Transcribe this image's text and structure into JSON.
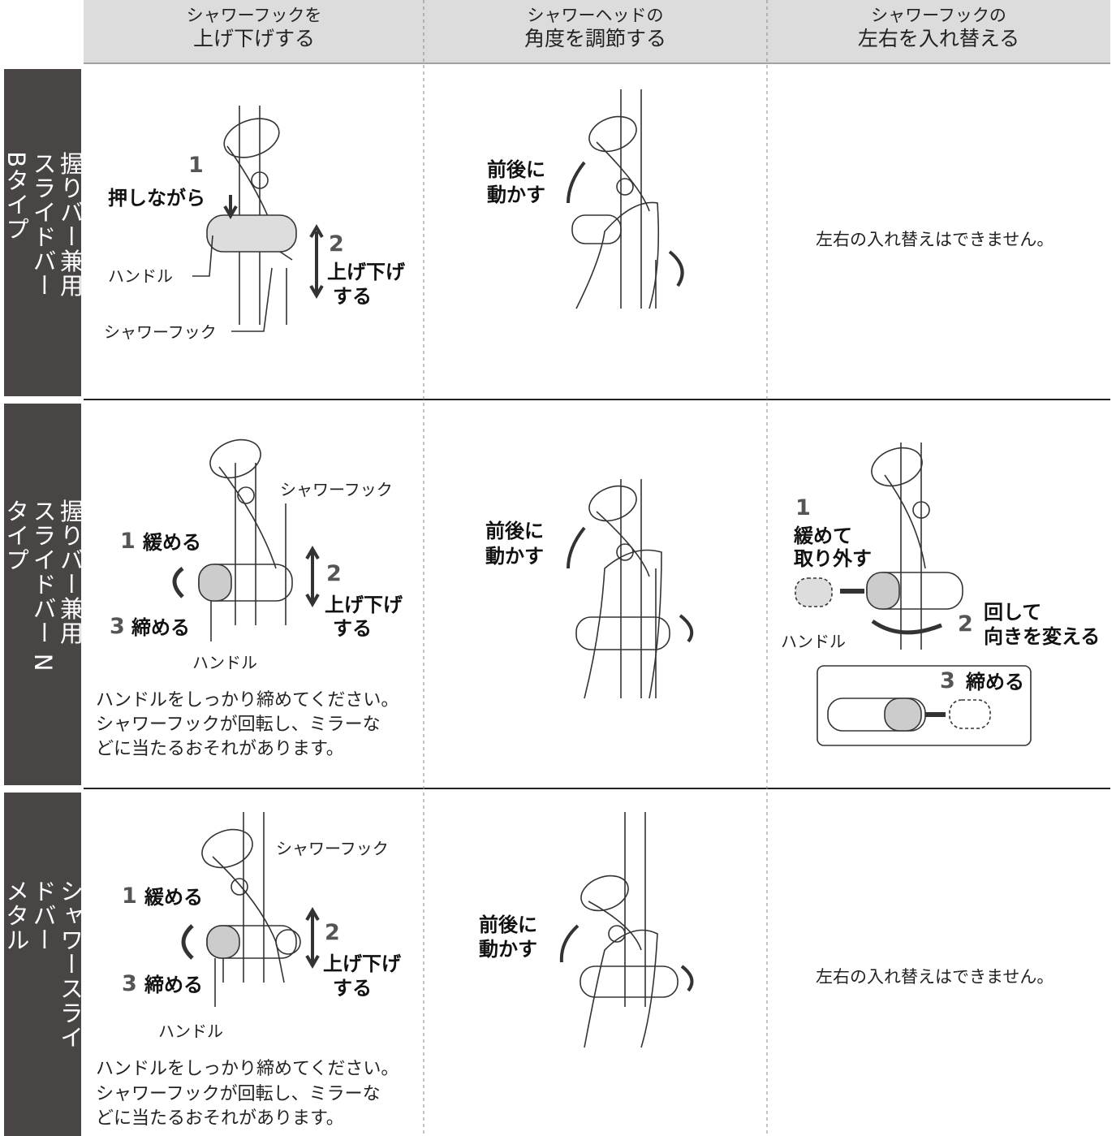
{
  "header": {
    "columns": [
      [
        "シャワーフックを",
        "上げ下げする"
      ],
      [
        "シャワーヘッドの",
        "角度を調節する"
      ],
      [
        "シャワーフックの",
        "左右を入れ替える"
      ]
    ]
  },
  "rows": [
    {
      "label": [
        "握りバー兼用",
        "スライドバー Bタイプ"
      ],
      "cells": [
        {
          "texts": [
            "1",
            "押しながら",
            "2",
            "上げ下げ",
            "する",
            "ハンドル",
            "シャワーフック"
          ]
        },
        {
          "texts": [
            "前後に",
            "動かす"
          ]
        },
        {
          "texts": [
            "左右の入れ替えはできません。"
          ]
        }
      ]
    },
    {
      "label": [
        "握りバー兼用",
        "スライドバー Nタイプ"
      ],
      "cells": [
        {
          "texts": [
            "シャワーフック",
            "1",
            "緩める",
            "2",
            "上げ下げ",
            "する",
            "3",
            "締める",
            "ハンドル"
          ],
          "note": [
            "ハンドルをしっかり締めてください。",
            "シャワーフックが回転し、ミラーな",
            "どに当たるおそれがあります。"
          ]
        },
        {
          "texts": [
            "前後に",
            "動かす"
          ]
        },
        {
          "texts": [
            "1",
            "緩めて",
            "取り外す",
            "2",
            "回して",
            "向きを変える",
            "3",
            "締める",
            "ハンドル"
          ]
        }
      ]
    },
    {
      "label": [
        "シャワースライドバー",
        "メタル"
      ],
      "cells": [
        {
          "texts": [
            "シャワーフック",
            "1",
            "緩める",
            "2",
            "上げ下げ",
            "する",
            "3",
            "締める",
            "ハンドル"
          ],
          "note": [
            "ハンドルをしっかり締めてください。",
            "シャワーフックが回転し、ミラーな",
            "どに当たるおそれがあります。"
          ]
        },
        {
          "texts": [
            "前後に",
            "動かす"
          ]
        },
        {
          "texts": [
            "左右の入れ替えはできません。"
          ]
        }
      ]
    }
  ]
}
